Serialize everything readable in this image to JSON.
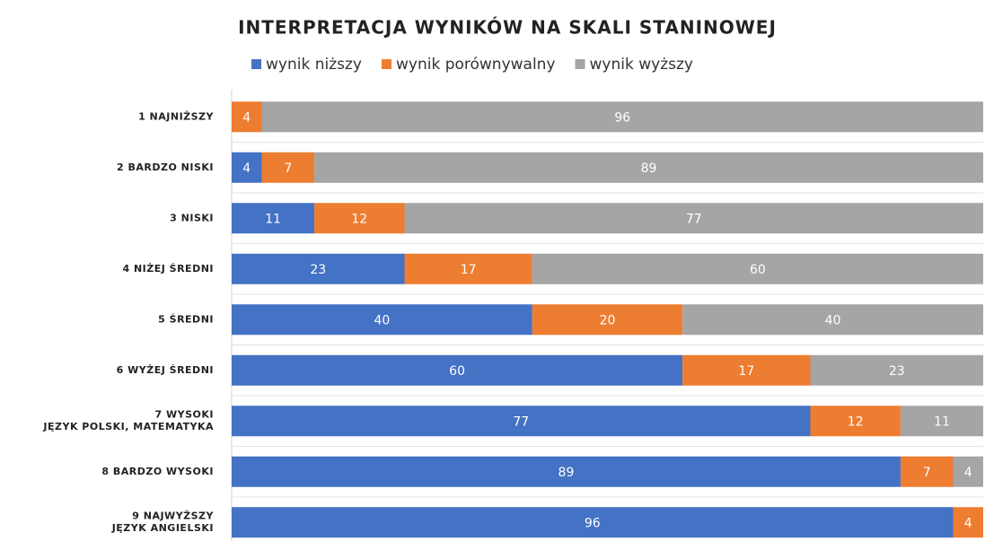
{
  "chart_data": {
    "type": "stacked-barh",
    "title": "INTERPRETACJA WYNIKÓW NA SKALI STANINOWEJ",
    "categories": [
      "1 NAJNIŻSZY",
      "2 BARDZO NISKI",
      "3 NISKI",
      "4 NIŻEJ ŚREDNI",
      "5 ŚREDNI",
      "6 WYŻEJ ŚREDNI",
      "7 WYSOKI\nJĘZYK POLSKI, MATEMATYKA",
      "8 BARDZO WYSOKI",
      "9 NAJWYŻSZY\nJĘZYK ANGIELSKI"
    ],
    "series": [
      {
        "name": "wynik niższy",
        "color": "#4472c4",
        "values": [
          0,
          4,
          11,
          23,
          40,
          60,
          77,
          89,
          96
        ]
      },
      {
        "name": "wynik porównywalny",
        "color": "#ed7d31",
        "values": [
          4,
          7,
          12,
          17,
          20,
          17,
          12,
          7,
          4
        ]
      },
      {
        "name": "wynik wyższy",
        "color": "#a5a5a5",
        "values": [
          96,
          89,
          77,
          60,
          40,
          23,
          11,
          4,
          0
        ]
      }
    ],
    "xlim": [
      0,
      100
    ],
    "grid": true,
    "legend": "top"
  }
}
